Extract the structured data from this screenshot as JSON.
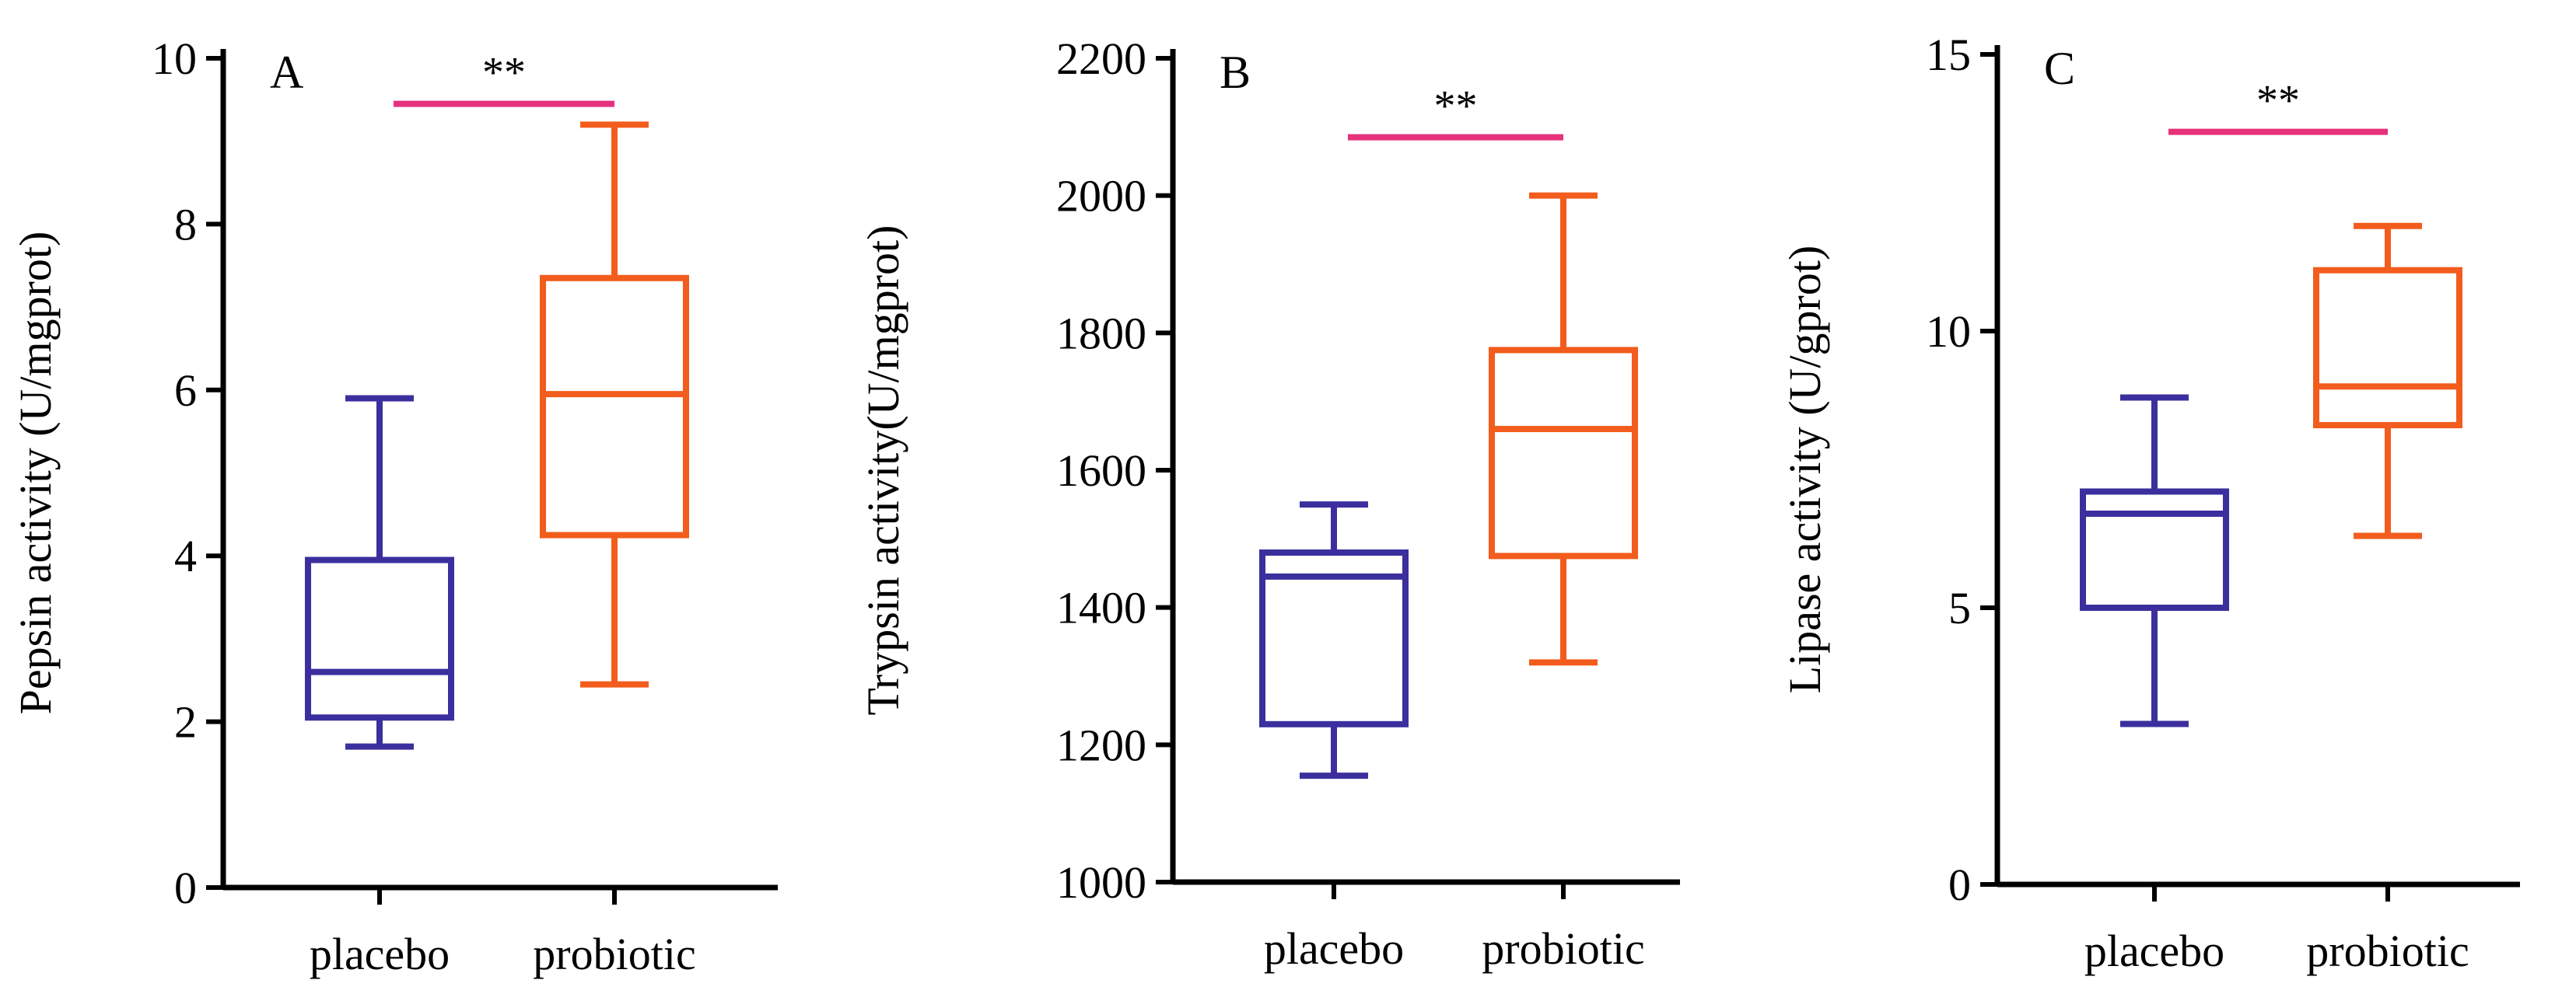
{
  "chart_data": [
    {
      "type": "box",
      "panel": "A",
      "title": "",
      "xlabel": "",
      "ylabel": "Pepsin activity (U/mgprot)",
      "ylim": [
        0,
        10
      ],
      "yticks": [
        0,
        2,
        4,
        6,
        8,
        10
      ],
      "categories": [
        "placebo",
        "probiotic"
      ],
      "boxes": [
        {
          "name": "placebo",
          "color": "#3b2f9e",
          "min": 1.7,
          "q1": 2.05,
          "median": 2.6,
          "q3": 3.95,
          "max": 5.9
        },
        {
          "name": "probiotic",
          "color": "#f25c1c",
          "min": 2.45,
          "q1": 4.25,
          "median": 5.95,
          "q3": 7.35,
          "max": 9.2
        }
      ],
      "significance": {
        "label": "**",
        "y": 9.45,
        "color": "#e6327a"
      }
    },
    {
      "type": "box",
      "panel": "B",
      "title": "",
      "xlabel": "",
      "ylabel": "Trypsin activity(U/mgprot)",
      "ylim": [
        1000,
        2200
      ],
      "yticks": [
        1000,
        1200,
        1400,
        1600,
        1800,
        2000,
        2200
      ],
      "categories": [
        "placebo",
        "probiotic"
      ],
      "boxes": [
        {
          "name": "placebo",
          "color": "#3b2f9e",
          "min": 1155,
          "q1": 1230,
          "median": 1445,
          "q3": 1480,
          "max": 1550
        },
        {
          "name": "probiotic",
          "color": "#f25c1c",
          "min": 1320,
          "q1": 1475,
          "median": 1660,
          "q3": 1775,
          "max": 2000
        }
      ],
      "significance": {
        "label": "**",
        "y": 2085,
        "color": "#e6327a"
      }
    },
    {
      "type": "box",
      "panel": "C",
      "title": "",
      "xlabel": "",
      "ylabel": "Lipase activity (U/gprot)",
      "ylim": [
        0,
        15
      ],
      "yticks": [
        0,
        5,
        10,
        15
      ],
      "categories": [
        "placebo",
        "probiotic"
      ],
      "boxes": [
        {
          "name": "placebo",
          "color": "#3b2f9e",
          "min": 2.9,
          "q1": 5.0,
          "median": 6.7,
          "q3": 7.1,
          "max": 8.8
        },
        {
          "name": "probiotic",
          "color": "#f25c1c",
          "min": 6.3,
          "q1": 8.3,
          "median": 9.0,
          "q3": 11.1,
          "max": 11.9
        }
      ],
      "significance": {
        "label": "**",
        "y": 13.6,
        "color": "#e6327a"
      }
    }
  ]
}
